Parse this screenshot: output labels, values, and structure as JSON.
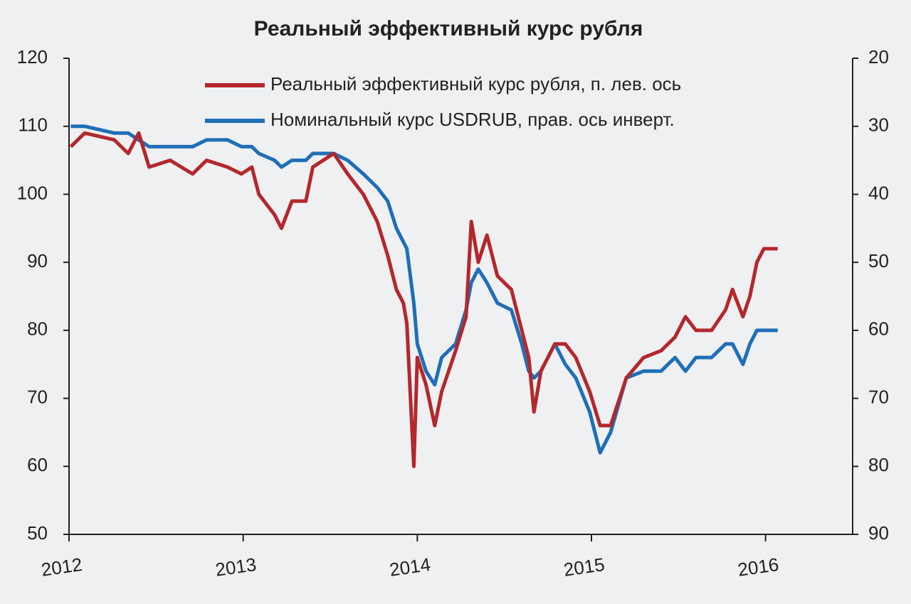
{
  "chart_data": {
    "type": "line",
    "title": "Реальный эффективный курс рубля",
    "x": [
      2012.01,
      2012.09,
      2012.26,
      2012.34,
      2012.4,
      2012.46,
      2012.58,
      2012.71,
      2012.79,
      2012.91,
      2012.99,
      2013.05,
      2013.09,
      2013.18,
      2013.22,
      2013.28,
      2013.36,
      2013.4,
      2013.52,
      2013.6,
      2013.69,
      2013.77,
      2013.83,
      2013.88,
      2013.92,
      2013.94,
      2013.98,
      2014.0,
      2014.05,
      2014.1,
      2014.14,
      2014.22,
      2014.28,
      2014.31,
      2014.35,
      2014.4,
      2014.46,
      2014.54,
      2014.6,
      2014.64,
      2014.67,
      2014.71,
      2014.79,
      2014.85,
      2014.91,
      2014.99,
      2015.05,
      2015.11,
      2015.2,
      2015.3,
      2015.4,
      2015.48,
      2015.54,
      2015.6,
      2015.69,
      2015.77,
      2015.81,
      2015.87,
      2015.91,
      2015.95,
      2015.99,
      2016.07
    ],
    "series": [
      {
        "name": "Реальный эффективный курс рубля, п. лев. ось",
        "color": "#b3272d",
        "values": [
          107,
          109,
          108,
          106,
          109,
          104,
          105,
          103,
          105,
          104,
          103,
          104,
          100,
          97,
          95,
          99,
          99,
          104,
          106,
          103,
          100,
          96,
          91,
          86,
          84,
          81,
          60,
          76,
          72,
          66,
          71,
          77,
          82,
          96,
          90,
          94,
          88,
          86,
          80,
          76,
          68,
          74,
          78,
          78,
          76,
          71,
          66,
          66,
          73,
          76,
          77,
          79,
          82,
          80,
          80,
          83,
          86,
          82,
          85,
          90,
          92,
          92
        ]
      },
      {
        "name": "Номинальный курс USDRUB, прав. ось инверт.",
        "color": "#1f6fb8",
        "axis": "y2",
        "values": [
          30,
          30,
          31,
          31,
          32,
          33,
          33,
          33,
          32,
          32,
          33,
          33,
          34,
          35,
          36,
          35,
          35,
          34,
          34,
          35,
          37,
          39,
          41,
          45,
          47,
          48,
          56,
          62,
          66,
          68,
          64,
          62,
          57,
          53,
          51,
          53,
          56,
          57,
          62,
          66,
          67,
          66,
          62,
          65,
          67,
          72,
          78,
          75,
          67,
          66,
          66,
          64,
          66,
          64,
          64,
          62,
          62,
          65,
          62,
          60,
          60,
          60
        ]
      }
    ],
    "xlim": [
      2012,
      2016.5
    ],
    "xticks": [
      2012,
      2013,
      2014,
      2015,
      2016
    ],
    "ylim": [
      50,
      120
    ],
    "yticks": [
      50,
      60,
      70,
      80,
      90,
      100,
      110,
      120
    ],
    "y2lim": [
      90,
      20
    ],
    "y2ticks": [
      20,
      30,
      40,
      50,
      60,
      70,
      80,
      90
    ],
    "grid": false,
    "legend": "top"
  }
}
